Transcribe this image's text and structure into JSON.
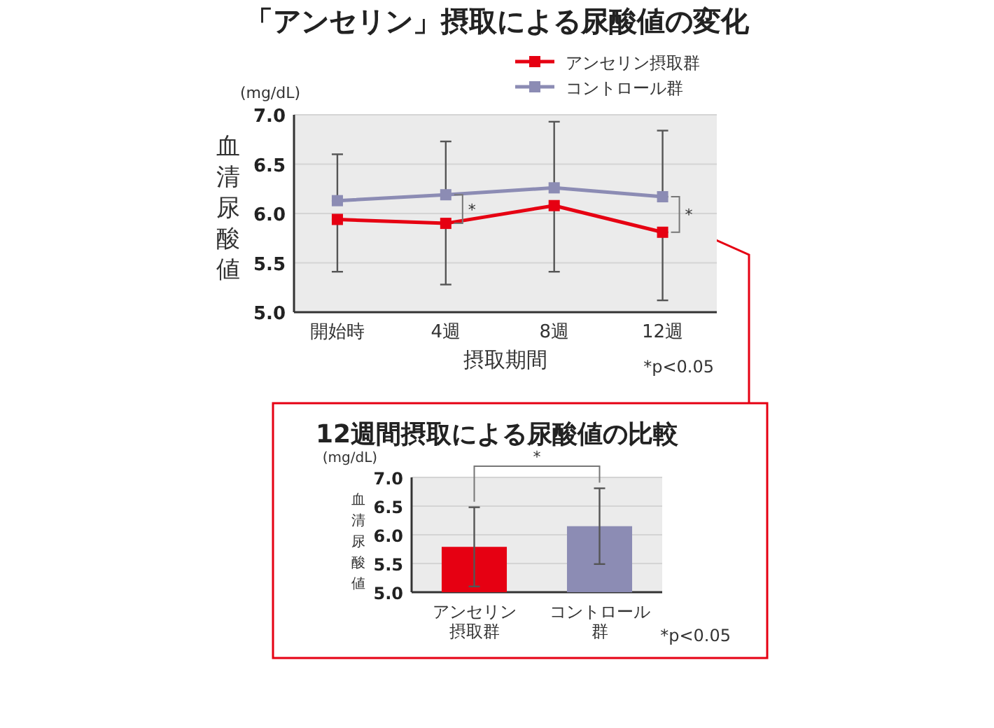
{
  "chart_data": [
    {
      "type": "line",
      "title": "「アンセリン」摂取による尿酸値の変化",
      "xlabel": "摂取期間",
      "ylabel": "血清尿酸値",
      "categories": [
        "開始時",
        "4週",
        "8週",
        "12週"
      ],
      "series": [
        {
          "name": "アンセリン摂取群",
          "color": "#e60012",
          "values": [
            5.94,
            5.9,
            6.08,
            5.81
          ],
          "errors": [
            [
              5.41,
              5.94
            ],
            [
              5.28,
              5.9
            ],
            [
              5.41,
              6.08
            ],
            [
              5.12,
              5.81
            ]
          ]
        },
        {
          "name": "コントロール群",
          "color": "#8c8cb4",
          "values": [
            6.13,
            6.19,
            6.26,
            6.17
          ],
          "errors": [
            [
              6.13,
              6.6
            ],
            [
              6.19,
              6.73
            ],
            [
              6.26,
              6.93
            ],
            [
              6.17,
              6.84
            ]
          ]
        }
      ],
      "ylim": [
        5,
        7
      ],
      "yticks": [
        {
          "value": 5,
          "label": "5.0"
        },
        {
          "value": 5.5,
          "label": "5.5"
        },
        {
          "value": 6,
          "label": "6.0"
        },
        {
          "value": 6.5,
          "label": "6.5"
        },
        {
          "value": 7,
          "label": "7.0"
        }
      ],
      "grid": "y",
      "legend": "top right",
      "marker": "square",
      "line_style": "solid",
      "annotations": [
        "(mg/dL)",
        "*",
        "*",
        "*p<0.05"
      ]
    },
    {
      "type": "bar",
      "title": "12週間摂取による尿酸値の比較",
      "ylabel": "血清尿酸値",
      "categories": [
        "アンセリン摂取群",
        "コントロール群"
      ],
      "values": [
        5.79,
        6.15
      ],
      "colors": [
        "#e60012",
        "#8c8cb4"
      ],
      "errors": [
        [
          5.1,
          6.48
        ],
        [
          5.49,
          6.81
        ]
      ],
      "ylim": [
        5,
        7
      ],
      "yticks": [
        {
          "value": 5,
          "label": "5.0"
        },
        {
          "value": 5.5,
          "label": "5.5"
        },
        {
          "value": 6,
          "label": "6.0"
        },
        {
          "value": 6.5,
          "label": "6.5"
        },
        {
          "value": 7,
          "label": "7.0"
        }
      ],
      "grid": "y",
      "annotations": [
        "(mg/dL)",
        "*",
        "*p<0.05"
      ]
    }
  ]
}
